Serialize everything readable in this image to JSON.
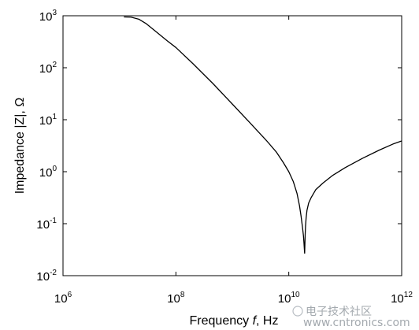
{
  "chart_data": {
    "type": "line",
    "title": "",
    "xlabel": "Frequency f, Hz",
    "xlabel_parts": {
      "prefix": "Frequency ",
      "italic": "f",
      "suffix": ", Hz"
    },
    "ylabel": "Impedance |Z|, Ω",
    "xscale": "log",
    "yscale": "log",
    "xlim": [
      1000000,
      1000000000000
    ],
    "ylim": [
      0.01,
      1000
    ],
    "grid": false,
    "legend": "none",
    "line_color": "#000000",
    "x_ticks": [
      {
        "value": 1000000,
        "base": "10",
        "exp": "6"
      },
      {
        "value": 100000000,
        "base": "10",
        "exp": "8"
      },
      {
        "value": 10000000000,
        "base": "10",
        "exp": "10"
      },
      {
        "value": 1000000000000,
        "base": "10",
        "exp": "12"
      }
    ],
    "y_ticks": [
      {
        "value": 0.01,
        "base": "10",
        "exp": "-2"
      },
      {
        "value": 0.1,
        "base": "10",
        "exp": "-1"
      },
      {
        "value": 1,
        "base": "10",
        "exp": "0"
      },
      {
        "value": 10,
        "base": "10",
        "exp": "1"
      },
      {
        "value": 100,
        "base": "10",
        "exp": "2"
      },
      {
        "value": 1000,
        "base": "10",
        "exp": "3"
      }
    ],
    "series": [
      {
        "x": [
          12000000,
          16000000,
          22000000,
          30000000,
          45000000,
          70000000,
          100000000,
          200000000,
          450000000,
          1000000000,
          2000000000,
          4000000000,
          6000000000,
          8000000000,
          10000000000,
          12000000000,
          14000000000,
          15500000000,
          16500000000,
          17500000000,
          18200000000,
          18600000000,
          18900000000,
          19100000000,
          19300000000,
          19500000000,
          19800000000,
          20300000000,
          21000000000,
          22500000000,
          25000000000,
          30000000000,
          40000000000,
          60000000000,
          100000000000,
          200000000000,
          400000000000,
          700000000000,
          1000000000000
        ],
        "y": [
          950,
          940,
          860,
          700,
          490,
          330,
          245,
          120,
          50,
          20,
          9,
          4,
          2.4,
          1.5,
          1,
          0.65,
          0.38,
          0.22,
          0.14,
          0.085,
          0.058,
          0.042,
          0.032,
          0.027,
          0.04,
          0.06,
          0.09,
          0.13,
          0.18,
          0.25,
          0.32,
          0.45,
          0.6,
          0.85,
          1.2,
          1.8,
          2.6,
          3.4,
          3.9
        ]
      }
    ]
  },
  "watermark": {
    "text": "电子技术社区",
    "site": "www.cntronics.com"
  }
}
